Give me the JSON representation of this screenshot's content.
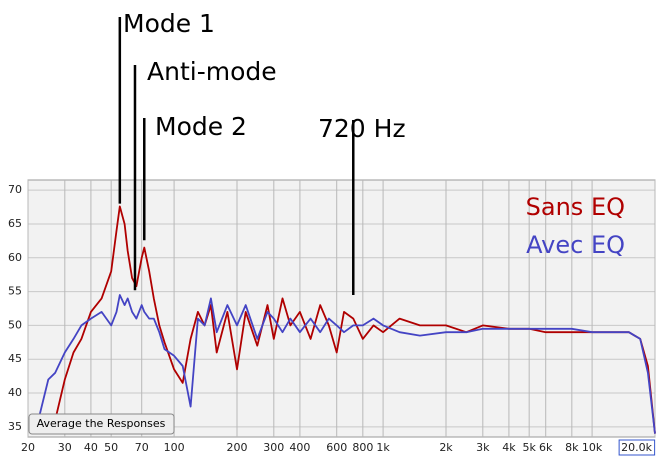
{
  "chart_data": {
    "type": "line",
    "xscale": "log",
    "xlim": [
      20,
      20000
    ],
    "ylim": [
      33.5,
      71.5
    ],
    "grid": true,
    "legend": "upper right",
    "button": "Average the Responses",
    "xticks": [
      20,
      30,
      40,
      50,
      70,
      100,
      200,
      300,
      400,
      600,
      800,
      {
        "value": 1000,
        "label": "1k"
      },
      {
        "value": 2000,
        "label": "2k"
      },
      {
        "value": 3000,
        "label": "3k"
      },
      {
        "value": 4000,
        "label": "4k"
      },
      {
        "value": 5000,
        "label": "5k"
      },
      {
        "value": 6000,
        "label": "6k"
      },
      {
        "value": 8000,
        "label": "8k"
      },
      {
        "value": 10000,
        "label": "10k"
      },
      {
        "value": 20000,
        "label": "20.0k"
      }
    ],
    "yticks": [
      35,
      40,
      45,
      50,
      55,
      60,
      65,
      70
    ],
    "annotations": [
      {
        "text": "Mode 1",
        "x": 55,
        "y": 68
      },
      {
        "text": "Anti-mode",
        "x": 65,
        "y": 55.2
      },
      {
        "text": "Mode 2",
        "x": 72,
        "y": 62.6
      },
      {
        "text": "720 Hz",
        "x": 720,
        "y": 54.5
      }
    ],
    "x": [
      20,
      22,
      25,
      27,
      30,
      33,
      36,
      40,
      45,
      50,
      53,
      55,
      58,
      60,
      63,
      66,
      70,
      72,
      76,
      80,
      85,
      90,
      100,
      110,
      120,
      130,
      140,
      150,
      160,
      180,
      200,
      220,
      250,
      280,
      300,
      330,
      360,
      400,
      450,
      500,
      550,
      600,
      650,
      720,
      800,
      900,
      1000,
      1200,
      1500,
      2000,
      2500,
      3000,
      4000,
      5000,
      6000,
      8000,
      10000,
      12000,
      15000,
      17000,
      18500,
      20000
    ],
    "series": [
      {
        "name": "Sans EQ",
        "color": "#b00000",
        "values": [
          null,
          null,
          null,
          36,
          42,
          46,
          48,
          52,
          54,
          58,
          64,
          67.6,
          65,
          61,
          57,
          55.8,
          60,
          61.5,
          58,
          54,
          50,
          47.5,
          43.5,
          41.5,
          48,
          52,
          50,
          53,
          46,
          52,
          43.5,
          52,
          47,
          53,
          48,
          54,
          50,
          52,
          48,
          53,
          50,
          46,
          52,
          51,
          48,
          50,
          49,
          51,
          50,
          50,
          49,
          50,
          49.5,
          49.5,
          49,
          49,
          49,
          49,
          49,
          48,
          44,
          34
        ]
      },
      {
        "name": "Avec EQ",
        "color": "#4444c4",
        "values": [
          null,
          35,
          42,
          43,
          46,
          48,
          50,
          51,
          52,
          50,
          52,
          54.5,
          53,
          54,
          52,
          51,
          53,
          52,
          51,
          51,
          49,
          46.5,
          45.5,
          44,
          38,
          51,
          50,
          54,
          49,
          53,
          50,
          53,
          48,
          52,
          51,
          49,
          51,
          49,
          51,
          49,
          51,
          50,
          49,
          50,
          50,
          51,
          50,
          49,
          48.5,
          49,
          49,
          49.5,
          49.5,
          49.5,
          49.5,
          49.5,
          49,
          49,
          49,
          48,
          43,
          34
        ]
      }
    ]
  }
}
